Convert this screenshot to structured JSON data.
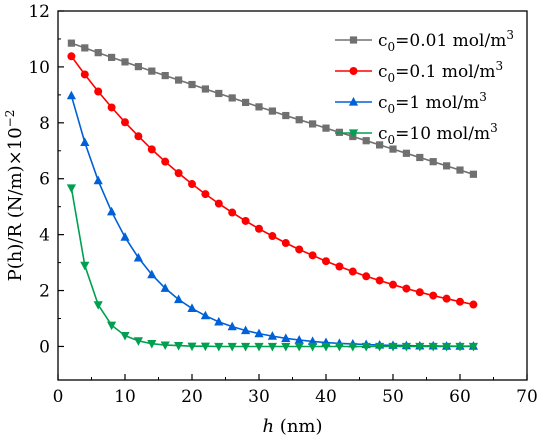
{
  "chart_data": {
    "type": "line",
    "xlabel": {
      "italic": "h",
      "rest": " (nm)"
    },
    "ylabel": {
      "main": "P(h)/R (N/m)×10",
      "sup": "−2"
    },
    "xlim": [
      0,
      70
    ],
    "ylim": [
      -1.2,
      12
    ],
    "xticks": [
      0,
      10,
      20,
      30,
      40,
      50,
      60,
      70
    ],
    "yticks": [
      0,
      2,
      4,
      6,
      8,
      10,
      12
    ],
    "legend_position": "top-right",
    "x": [
      2,
      4,
      6,
      8,
      10,
      12,
      14,
      16,
      18,
      20,
      22,
      24,
      26,
      28,
      30,
      32,
      34,
      36,
      38,
      40,
      42,
      44,
      46,
      48,
      50,
      52,
      54,
      56,
      58,
      60,
      62
    ],
    "series": [
      {
        "name": {
          "pre": "c",
          "sub": "0",
          "mid": "=0.01 mol/m",
          "sup": "3"
        },
        "color": "#707070",
        "marker": "square",
        "values": [
          10.85,
          10.68,
          10.51,
          10.34,
          10.18,
          10.01,
          9.85,
          9.69,
          9.53,
          9.37,
          9.21,
          9.05,
          8.89,
          8.73,
          8.57,
          8.42,
          8.26,
          8.11,
          7.96,
          7.81,
          7.66,
          7.51,
          7.36,
          7.21,
          7.06,
          6.91,
          6.76,
          6.61,
          6.46,
          6.31,
          6.16
        ]
      },
      {
        "name": {
          "pre": "c",
          "sub": "0",
          "mid": "=0.1 mol/m",
          "sup": "3"
        },
        "color": "#ff0000",
        "marker": "circle",
        "values": [
          10.38,
          9.73,
          9.12,
          8.55,
          8.02,
          7.52,
          7.05,
          6.61,
          6.2,
          5.81,
          5.45,
          5.11,
          4.79,
          4.49,
          4.21,
          3.95,
          3.7,
          3.47,
          3.26,
          3.05,
          2.86,
          2.68,
          2.51,
          2.36,
          2.21,
          2.07,
          1.94,
          1.82,
          1.71,
          1.6,
          1.5
        ]
      },
      {
        "name": {
          "pre": "c",
          "sub": "0",
          "mid": "=1 mol/m",
          "sup": "3"
        },
        "color": "#0060d8",
        "marker": "triangle-up",
        "values": [
          8.97,
          7.3,
          5.93,
          4.82,
          3.91,
          3.17,
          2.57,
          2.08,
          1.68,
          1.36,
          1.1,
          0.88,
          0.71,
          0.57,
          0.46,
          0.37,
          0.29,
          0.23,
          0.18,
          0.14,
          0.11,
          0.09,
          0.07,
          0.05,
          0.04,
          0.03,
          0.02,
          0.02,
          0.01,
          0.01,
          0.01
        ]
      },
      {
        "name": {
          "pre": "c",
          "sub": "0",
          "mid": "=10 mol/m",
          "sup": "3"
        },
        "color": "#00a050",
        "marker": "triangle-down",
        "values": [
          5.67,
          2.9,
          1.49,
          0.76,
          0.39,
          0.2,
          0.1,
          0.05,
          0.03,
          0.01,
          0.01,
          0.0,
          0.0,
          0.0,
          0.0,
          0.0,
          0.0,
          0.0,
          0.0,
          0.0,
          0.0,
          0.0,
          0.0,
          0.0,
          0.0,
          0.0,
          0.0,
          0.0,
          0.0,
          0.0,
          0.0
        ]
      }
    ]
  }
}
